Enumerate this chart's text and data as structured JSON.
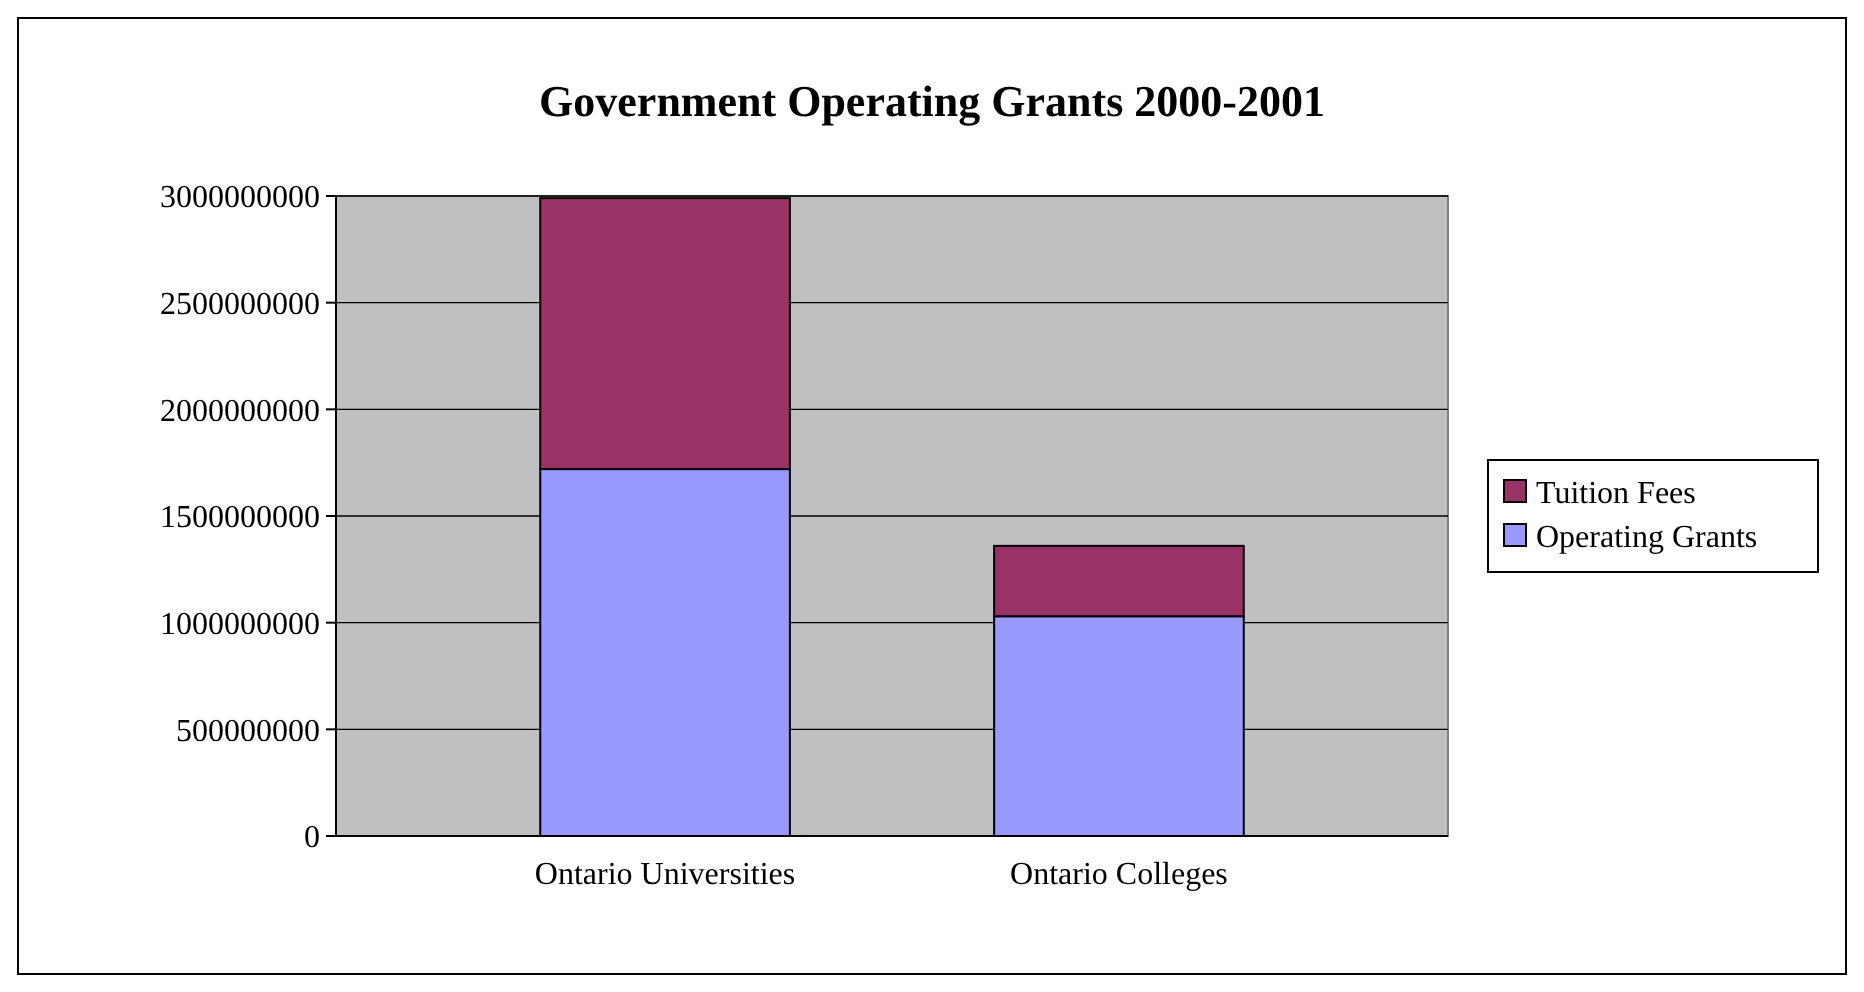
{
  "chart_data": {
    "type": "bar",
    "title": "Government Operating Grants 2000-2001",
    "categories": [
      "Ontario Universities",
      "Ontario Colleges"
    ],
    "stacked": true,
    "series": [
      {
        "name": "Operating Grants",
        "color": "#9999ff",
        "values": [
          1720000000,
          1030000000
        ]
      },
      {
        "name": "Tuition Fees",
        "color": "#993366",
        "values": [
          1270000000,
          330000000
        ]
      }
    ],
    "ylim": [
      0,
      3000000000
    ],
    "yticks": [
      0,
      500000000,
      1000000000,
      1500000000,
      2000000000,
      2500000000,
      3000000000
    ],
    "grid": "y",
    "legend": "right"
  }
}
